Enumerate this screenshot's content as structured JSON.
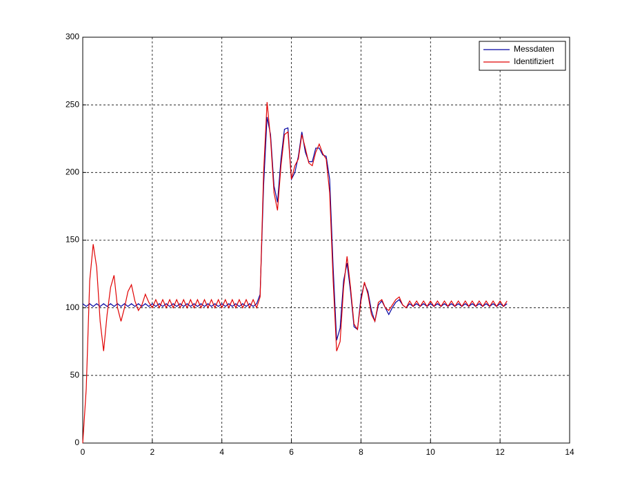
{
  "chart_data": {
    "type": "line",
    "x": [
      0,
      0.1,
      0.2,
      0.3,
      0.4,
      0.5,
      0.6,
      0.7,
      0.8,
      0.9,
      1,
      1.1,
      1.2,
      1.3,
      1.4,
      1.5,
      1.6,
      1.7,
      1.8,
      1.9,
      2,
      2.1,
      2.2,
      2.3,
      2.4,
      2.5,
      2.6,
      2.7,
      2.8,
      2.9,
      3,
      3.1,
      3.2,
      3.3,
      3.4,
      3.5,
      3.6,
      3.7,
      3.8,
      3.9,
      4,
      4.1,
      4.2,
      4.3,
      4.4,
      4.5,
      4.6,
      4.7,
      4.8,
      4.9,
      5,
      5.1,
      5.2,
      5.3,
      5.4,
      5.5,
      5.6,
      5.7,
      5.8,
      5.9,
      6,
      6.1,
      6.2,
      6.3,
      6.4,
      6.5,
      6.6,
      6.7,
      6.8,
      6.9,
      7,
      7.1,
      7.2,
      7.3,
      7.4,
      7.5,
      7.6,
      7.7,
      7.8,
      7.9,
      8,
      8.1,
      8.2,
      8.3,
      8.4,
      8.5,
      8.6,
      8.7,
      8.8,
      8.9,
      9,
      9.1,
      9.2,
      9.3,
      9.4,
      9.5,
      9.6,
      9.7,
      9.8,
      9.9,
      10,
      10.1,
      10.2,
      10.3,
      10.4,
      10.5,
      10.6,
      10.7,
      10.8,
      10.9,
      11,
      11.1,
      11.2,
      11.3,
      11.4,
      11.5,
      11.6,
      11.7,
      11.8,
      11.9,
      12,
      12.1,
      12.2
    ],
    "series": [
      {
        "name": "Messdaten",
        "color": "#0000a0",
        "values": [
          103,
          101,
          103,
          101,
          103,
          101,
          103,
          101,
          103,
          101,
          103,
          101,
          103,
          101,
          103,
          101,
          103,
          101,
          103,
          101,
          103,
          101,
          103,
          101,
          103,
          101,
          103,
          101,
          103,
          101,
          103,
          101,
          103,
          101,
          103,
          101,
          103,
          101,
          103,
          101,
          103,
          101,
          103,
          101,
          103,
          101,
          103,
          101,
          103,
          101,
          103,
          110,
          190,
          241,
          228,
          190,
          178,
          210,
          232,
          233,
          195,
          200,
          212,
          230,
          215,
          208,
          208,
          218,
          218,
          213,
          212,
          195,
          130,
          76,
          85,
          120,
          133,
          112,
          86,
          84,
          108,
          118,
          112,
          98,
          90,
          102,
          105,
          100,
          95,
          100,
          104,
          106,
          102,
          100,
          103,
          101,
          103,
          101,
          103,
          101,
          103,
          101,
          103,
          101,
          103,
          101,
          103,
          101,
          103,
          101,
          103,
          101,
          103,
          101,
          103,
          101,
          103,
          101,
          103,
          101,
          103,
          101,
          103
        ]
      },
      {
        "name": "Identifiziert",
        "color": "#e00000",
        "values": [
          0,
          40,
          120,
          147,
          130,
          90,
          68,
          95,
          115,
          124,
          100,
          90,
          100,
          112,
          117,
          105,
          98,
          102,
          110,
          104,
          100,
          106,
          100,
          106,
          100,
          106,
          100,
          106,
          100,
          106,
          100,
          106,
          100,
          106,
          100,
          106,
          100,
          106,
          100,
          106,
          100,
          106,
          100,
          106,
          100,
          106,
          100,
          106,
          100,
          106,
          100,
          108,
          200,
          252,
          225,
          185,
          172,
          205,
          228,
          230,
          195,
          205,
          210,
          228,
          218,
          207,
          205,
          215,
          221,
          214,
          210,
          185,
          120,
          68,
          75,
          115,
          138,
          115,
          88,
          84,
          105,
          119,
          110,
          95,
          90,
          104,
          106,
          100,
          98,
          102,
          106,
          108,
          102,
          100,
          105,
          101,
          105,
          101,
          105,
          101,
          105,
          101,
          105,
          101,
          105,
          101,
          105,
          101,
          105,
          101,
          105,
          101,
          105,
          101,
          105,
          101,
          105,
          101,
          105,
          101,
          105,
          101,
          105
        ]
      }
    ],
    "xlim": [
      0,
      14
    ],
    "ylim": [
      0,
      300
    ],
    "xticks": [
      0,
      2,
      4,
      6,
      8,
      10,
      12,
      14
    ],
    "yticks": [
      0,
      50,
      100,
      150,
      200,
      250,
      300
    ],
    "grid": true,
    "legend": "upper-right"
  }
}
